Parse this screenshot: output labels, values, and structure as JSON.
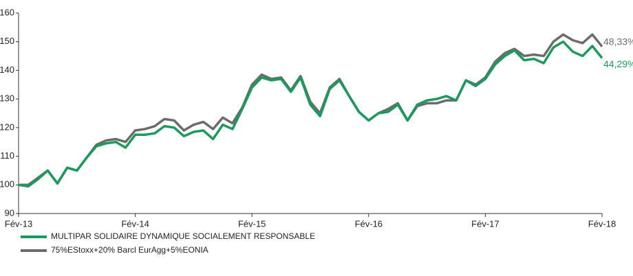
{
  "chart_data": {
    "type": "line",
    "categories": [
      "Fév-13",
      null,
      null,
      null,
      null,
      null,
      null,
      null,
      null,
      null,
      null,
      null,
      "Fév-14",
      null,
      null,
      null,
      null,
      null,
      null,
      null,
      null,
      null,
      null,
      null,
      "Fév-15",
      null,
      null,
      null,
      null,
      null,
      null,
      null,
      null,
      null,
      null,
      null,
      "Fév-16",
      null,
      null,
      null,
      null,
      null,
      null,
      null,
      null,
      null,
      null,
      null,
      "Fév-17",
      null,
      null,
      null,
      null,
      null,
      null,
      null,
      null,
      null,
      null,
      null,
      "Fév-18"
    ],
    "series": [
      {
        "name": "MULTIPAR SOLIDAIRE DYNAMIQUE SOCIALEMENT RESPONSABLE",
        "color": "#1a9a5c",
        "end_label": "44,29%",
        "values": [
          100,
          99.5,
          102,
          105,
          100.5,
          106,
          105,
          109.5,
          113.5,
          114.5,
          115,
          113,
          117.5,
          117.5,
          118,
          120.5,
          120,
          117,
          118.5,
          119,
          116,
          121,
          119.5,
          126.5,
          134,
          137.5,
          136.5,
          137,
          132.5,
          137.5,
          128,
          124,
          133.5,
          136.5,
          131,
          125.5,
          122.5,
          125,
          125.5,
          128,
          122.5,
          128,
          129.5,
          130,
          131,
          129.5,
          136.5,
          134.5,
          137,
          142,
          145,
          147,
          143.5,
          144,
          142.5,
          148,
          150,
          146.5,
          145,
          148.5,
          144.29
        ]
      },
      {
        "name": "75%EStoxx+20% Barcl EurAgg+5%EONIA",
        "color": "#6b6b6b",
        "end_label": "48,33%",
        "values": [
          100,
          100,
          102.5,
          105,
          100.5,
          106,
          105,
          109.5,
          114,
          115.5,
          116,
          115,
          119,
          119.5,
          120.5,
          123,
          122.5,
          119,
          121,
          122,
          119.5,
          123.5,
          121.5,
          127,
          135,
          138.5,
          137,
          137.5,
          133,
          138,
          129,
          125,
          134,
          137,
          131,
          125.5,
          122.5,
          125,
          126.5,
          128.5,
          122.5,
          127.5,
          128.5,
          128.5,
          129.5,
          129.5,
          136.5,
          135,
          137.5,
          143,
          146,
          147.5,
          145,
          145.5,
          145,
          150,
          152.5,
          150.5,
          149.5,
          152.5,
          148.33
        ]
      }
    ],
    "ylim": [
      90,
      160
    ],
    "yticks": [
      90,
      100,
      110,
      120,
      130,
      140,
      150,
      160
    ],
    "grid": false
  }
}
